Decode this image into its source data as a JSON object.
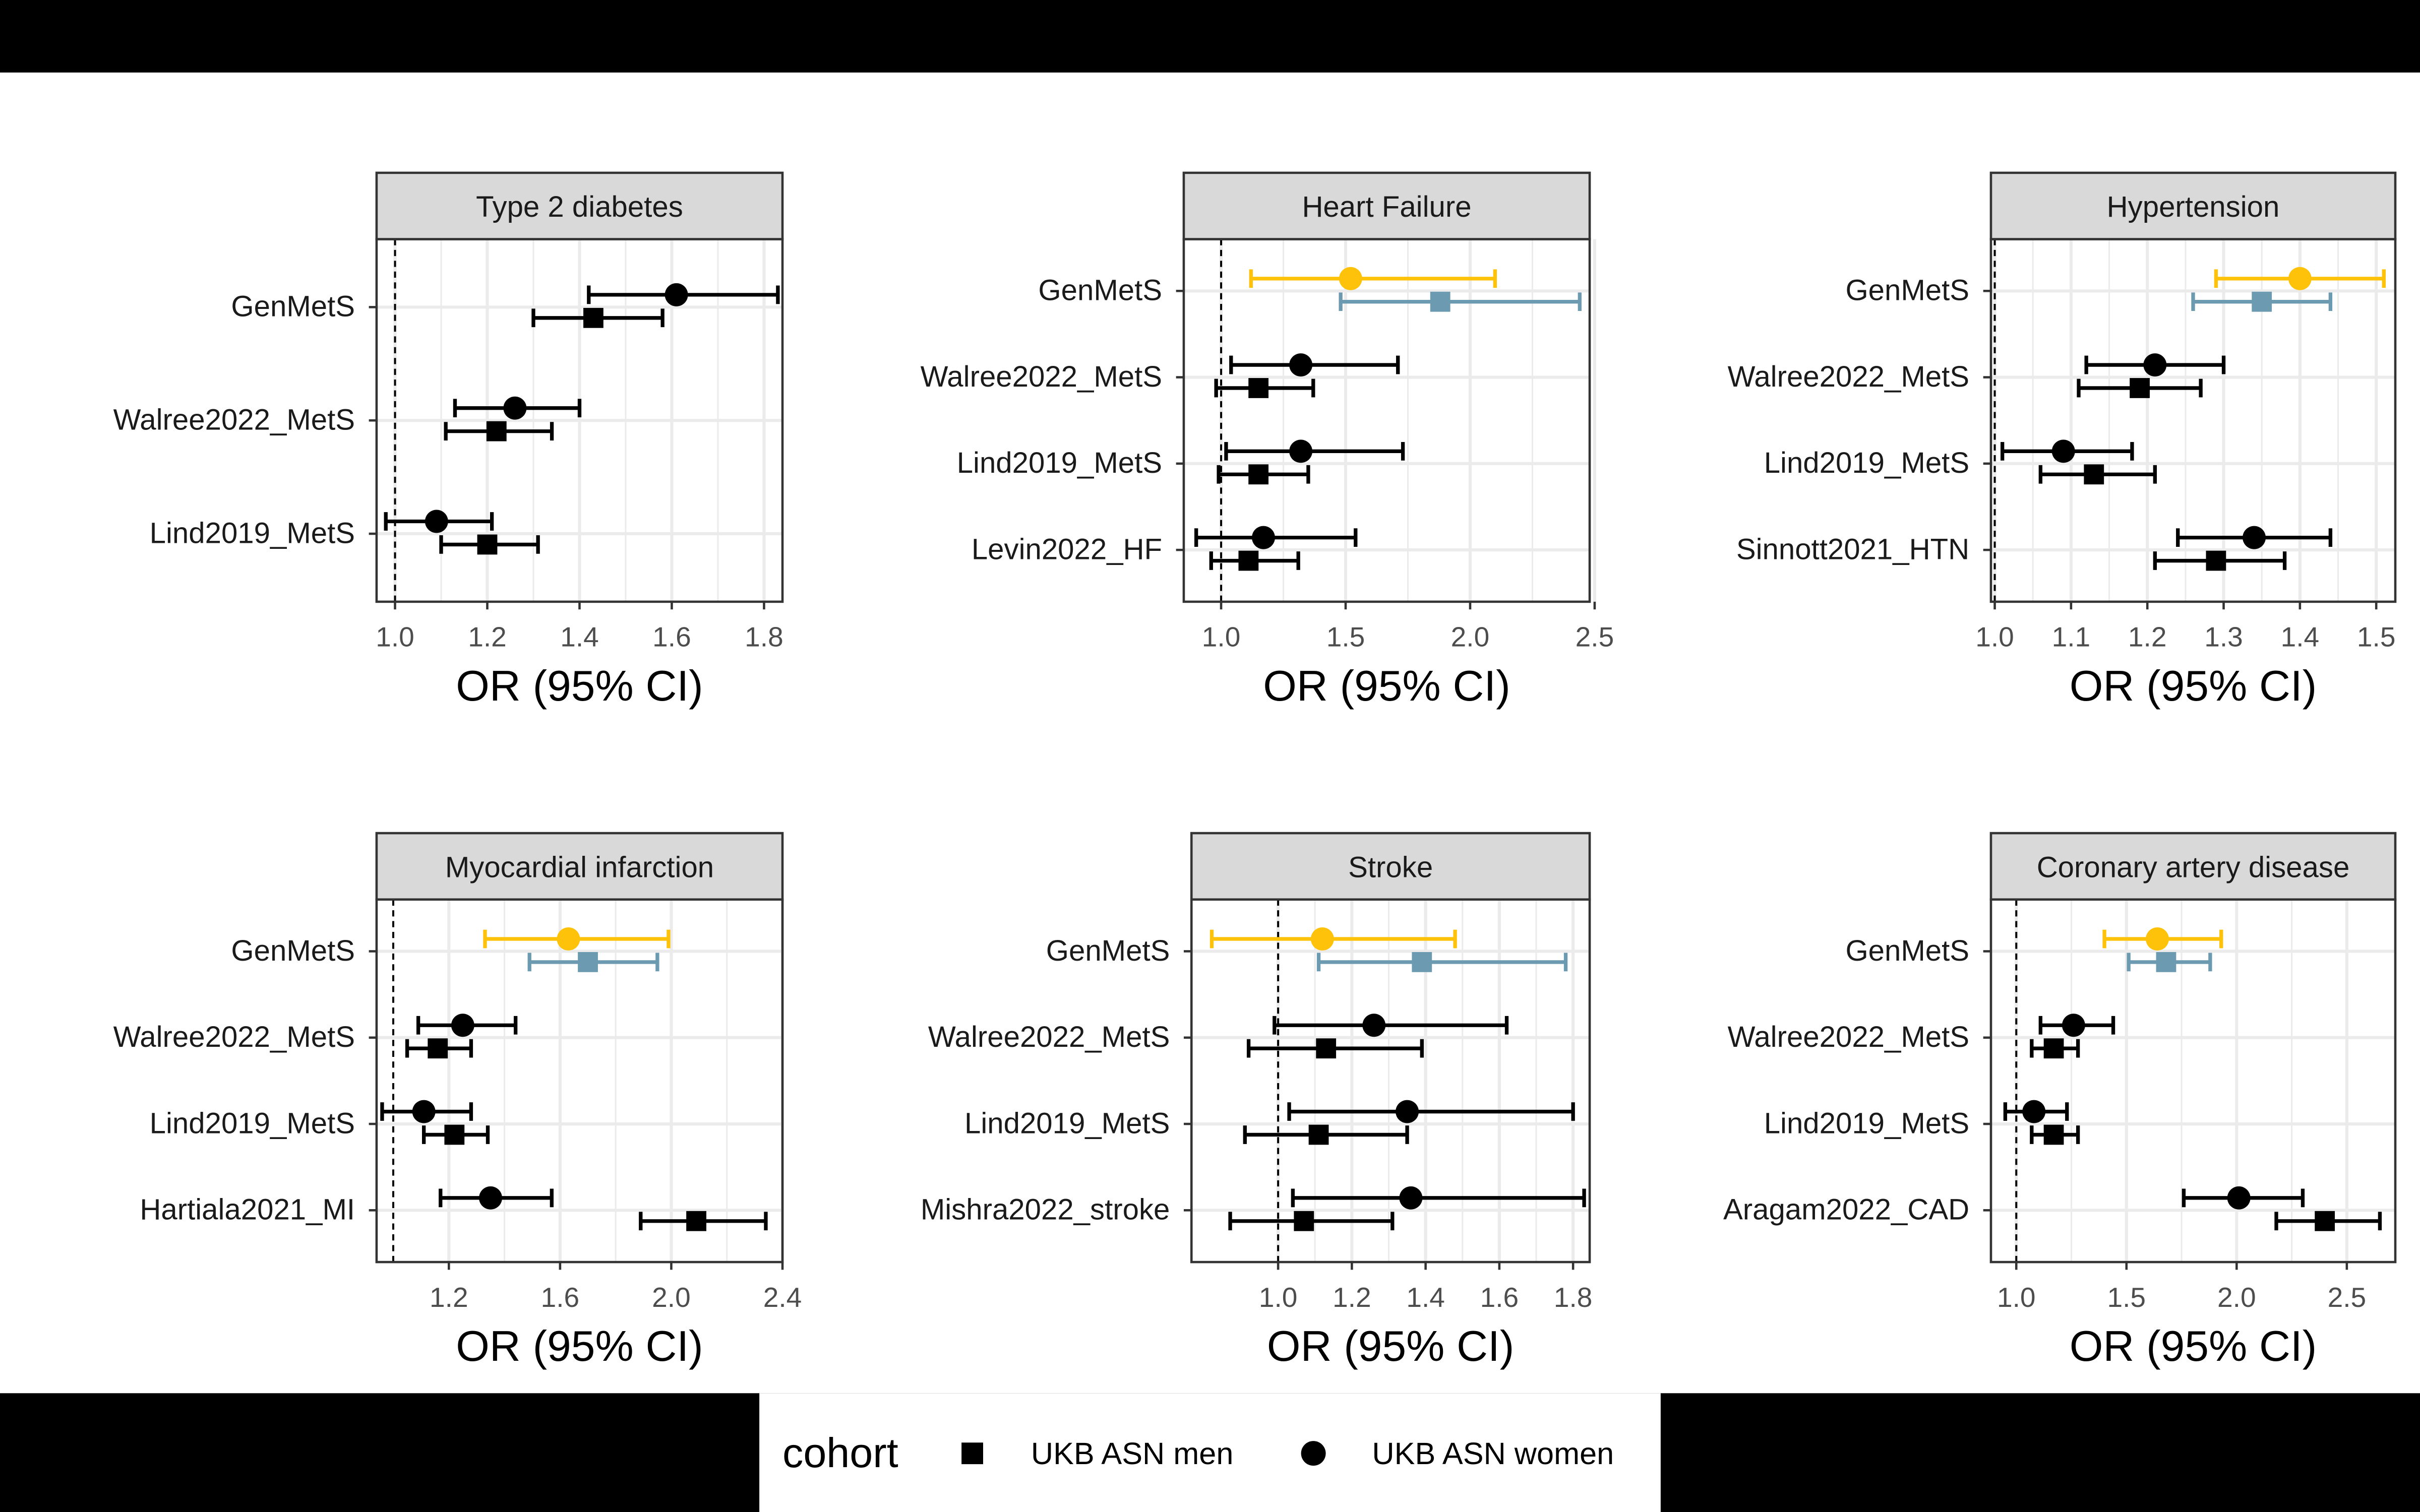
{
  "legend": {
    "title": "cohort",
    "entries": [
      {
        "label": "UKB ASN men",
        "shape": "square"
      },
      {
        "label": "UKB ASN women",
        "shape": "circle"
      }
    ]
  },
  "colors": {
    "default": "#000000",
    "highlight_women": "#FFC20A",
    "highlight_men": "#6C9AB0",
    "strip_fill": "#D9D9D9",
    "grid": "#EBEBEB",
    "frame": "#333333"
  },
  "chart_data": [
    {
      "type": "forest",
      "title": "Type 2 diabetes",
      "xlabel": "OR (95% CI)",
      "xlim": [
        0.96,
        1.84
      ],
      "xticks": [
        1.0,
        1.2,
        1.4,
        1.6,
        1.8
      ],
      "xtick_labels": [
        "1.0",
        "1.2",
        "1.4",
        "1.6",
        "1.8"
      ],
      "reference_line": 1.0,
      "rows": [
        {
          "label": "GenMetS",
          "women": {
            "or": 1.61,
            "lo": 1.42,
            "hi": 1.83
          },
          "men": {
            "or": 1.43,
            "lo": 1.3,
            "hi": 1.58
          }
        },
        {
          "label": "Walree2022_MetS",
          "women": {
            "or": 1.26,
            "lo": 1.13,
            "hi": 1.4
          },
          "men": {
            "or": 1.22,
            "lo": 1.11,
            "hi": 1.34
          }
        },
        {
          "label": "Lind2019_MetS",
          "women": {
            "or": 1.09,
            "lo": 0.98,
            "hi": 1.21
          },
          "men": {
            "or": 1.2,
            "lo": 1.1,
            "hi": 1.31
          }
        }
      ]
    },
    {
      "type": "forest",
      "title": "Heart Failure",
      "xlabel": "OR (95% CI)",
      "xlim": [
        0.85,
        2.48
      ],
      "xticks": [
        1.0,
        1.5,
        2.0,
        2.5
      ],
      "xtick_labels": [
        "1.0",
        "1.5",
        "2.0",
        "2.5"
      ],
      "reference_line": 1.0,
      "rows": [
        {
          "label": "GenMetS",
          "highlight": true,
          "women": {
            "or": 1.52,
            "lo": 1.12,
            "hi": 2.1
          },
          "men": {
            "or": 1.88,
            "lo": 1.48,
            "hi": 2.44
          }
        },
        {
          "label": "Walree2022_MetS",
          "women": {
            "or": 1.32,
            "lo": 1.04,
            "hi": 1.71
          },
          "men": {
            "or": 1.15,
            "lo": 0.98,
            "hi": 1.37
          }
        },
        {
          "label": "Lind2019_MetS",
          "women": {
            "or": 1.32,
            "lo": 1.02,
            "hi": 1.73
          },
          "men": {
            "or": 1.15,
            "lo": 0.99,
            "hi": 1.35
          }
        },
        {
          "label": "Levin2022_HF",
          "women": {
            "or": 1.17,
            "lo": 0.9,
            "hi": 1.54
          },
          "men": {
            "or": 1.11,
            "lo": 0.96,
            "hi": 1.31
          }
        }
      ]
    },
    {
      "type": "forest",
      "title": "Hypertension",
      "xlabel": "OR (95% CI)",
      "xlim": [
        0.995,
        1.525
      ],
      "xticks": [
        1.0,
        1.1,
        1.2,
        1.3,
        1.4,
        1.5
      ],
      "xtick_labels": [
        "1.0",
        "1.1",
        "1.2",
        "1.3",
        "1.4",
        "1.5"
      ],
      "reference_line": 1.0,
      "rows": [
        {
          "label": "GenMetS",
          "highlight": true,
          "women": {
            "or": 1.4,
            "lo": 1.29,
            "hi": 1.51
          },
          "men": {
            "or": 1.35,
            "lo": 1.26,
            "hi": 1.44
          }
        },
        {
          "label": "Walree2022_MetS",
          "women": {
            "or": 1.21,
            "lo": 1.12,
            "hi": 1.3
          },
          "men": {
            "or": 1.19,
            "lo": 1.11,
            "hi": 1.27
          }
        },
        {
          "label": "Lind2019_MetS",
          "women": {
            "or": 1.09,
            "lo": 1.01,
            "hi": 1.18
          },
          "men": {
            "or": 1.13,
            "lo": 1.06,
            "hi": 1.21
          }
        },
        {
          "label": "Sinnott2021_HTN",
          "women": {
            "or": 1.34,
            "lo": 1.24,
            "hi": 1.44
          },
          "men": {
            "or": 1.29,
            "lo": 1.21,
            "hi": 1.38
          }
        }
      ]
    },
    {
      "type": "forest",
      "title": "Myocardial infarction",
      "xlabel": "OR (95% CI)",
      "xlim": [
        0.94,
        2.4
      ],
      "xticks": [
        1.2,
        1.6,
        2.0,
        2.4
      ],
      "xtick_labels": [
        "1.2",
        "1.6",
        "2.0",
        "2.4"
      ],
      "reference_line": 1.0,
      "rows": [
        {
          "label": "GenMetS",
          "highlight": true,
          "women": {
            "or": 1.63,
            "lo": 1.33,
            "hi": 1.99
          },
          "men": {
            "or": 1.7,
            "lo": 1.49,
            "hi": 1.95
          }
        },
        {
          "label": "Walree2022_MetS",
          "women": {
            "or": 1.25,
            "lo": 1.09,
            "hi": 1.44
          },
          "men": {
            "or": 1.16,
            "lo": 1.05,
            "hi": 1.28
          }
        },
        {
          "label": "Lind2019_MetS",
          "women": {
            "or": 1.11,
            "lo": 0.96,
            "hi": 1.28
          },
          "men": {
            "or": 1.22,
            "lo": 1.11,
            "hi": 1.34
          }
        },
        {
          "label": "Hartiala2021_MI",
          "women": {
            "or": 1.35,
            "lo": 1.17,
            "hi": 1.57
          },
          "men": {
            "or": 2.09,
            "lo": 1.89,
            "hi": 2.34
          }
        }
      ]
    },
    {
      "type": "forest",
      "title": "Stroke",
      "xlabel": "OR (95% CI)",
      "xlim": [
        0.765,
        1.845
      ],
      "xticks": [
        1.0,
        1.2,
        1.4,
        1.6,
        1.8
      ],
      "xtick_labels": [
        "1.0",
        "1.2",
        "1.4",
        "1.6",
        "1.8"
      ],
      "reference_line": 1.0,
      "rows": [
        {
          "label": "GenMetS",
          "highlight": true,
          "women": {
            "or": 1.12,
            "lo": 0.82,
            "hi": 1.48
          },
          "men": {
            "or": 1.39,
            "lo": 1.11,
            "hi": 1.78
          }
        },
        {
          "label": "Walree2022_MetS",
          "women": {
            "or": 1.26,
            "lo": 0.99,
            "hi": 1.62
          },
          "men": {
            "or": 1.13,
            "lo": 0.92,
            "hi": 1.39
          }
        },
        {
          "label": "Lind2019_MetS",
          "women": {
            "or": 1.35,
            "lo": 1.03,
            "hi": 1.8
          },
          "men": {
            "or": 1.11,
            "lo": 0.91,
            "hi": 1.35
          }
        },
        {
          "label": "Mishra2022_stroke",
          "women": {
            "or": 1.36,
            "lo": 1.04,
            "hi": 1.83
          },
          "men": {
            "or": 1.07,
            "lo": 0.87,
            "hi": 1.31
          }
        }
      ]
    },
    {
      "type": "forest",
      "title": "Coronary artery disease",
      "xlabel": "OR (95% CI)",
      "xlim": [
        0.885,
        2.72
      ],
      "xticks": [
        1.0,
        1.5,
        2.0,
        2.5
      ],
      "xtick_labels": [
        "1.0",
        "1.5",
        "2.0",
        "2.5"
      ],
      "reference_line": 1.0,
      "rows": [
        {
          "label": "GenMetS",
          "highlight": true,
          "women": {
            "or": 1.64,
            "lo": 1.4,
            "hi": 1.93
          },
          "men": {
            "or": 1.68,
            "lo": 1.51,
            "hi": 1.88
          }
        },
        {
          "label": "Walree2022_MetS",
          "women": {
            "or": 1.26,
            "lo": 1.11,
            "hi": 1.44
          },
          "men": {
            "or": 1.17,
            "lo": 1.07,
            "hi": 1.28
          }
        },
        {
          "label": "Lind2019_MetS",
          "women": {
            "or": 1.08,
            "lo": 0.95,
            "hi": 1.23
          },
          "men": {
            "or": 1.17,
            "lo": 1.07,
            "hi": 1.28
          }
        },
        {
          "label": "Aragam2022_CAD",
          "women": {
            "or": 2.01,
            "lo": 1.76,
            "hi": 2.3
          },
          "men": {
            "or": 2.4,
            "lo": 2.18,
            "hi": 2.65
          }
        }
      ]
    }
  ]
}
